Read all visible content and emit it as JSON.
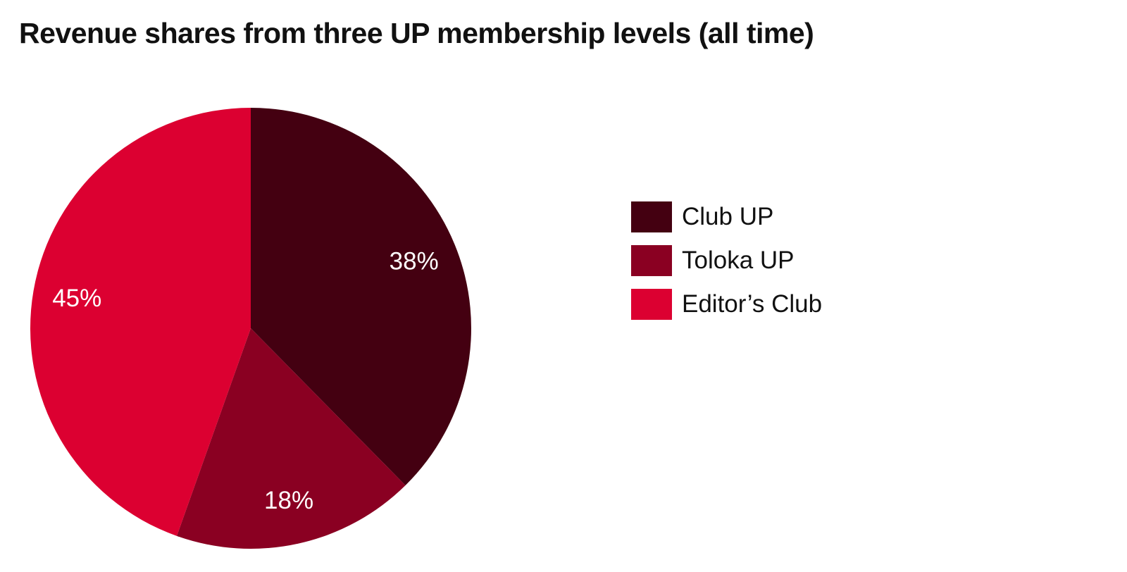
{
  "chart_data": {
    "type": "pie",
    "title": "Revenue shares from three UP membership levels (all time)",
    "slices": [
      {
        "name": "Club UP",
        "value": 38,
        "label": "38%",
        "color": "#440011"
      },
      {
        "name": "Toloka UP",
        "value": 18,
        "label": "18%",
        "color": "#8a0022"
      },
      {
        "name": "Editor’s Club",
        "value": 45,
        "label": "45%",
        "color": "#dc0031"
      }
    ],
    "legend_position": "right",
    "start": "top",
    "direction": "clockwise"
  }
}
